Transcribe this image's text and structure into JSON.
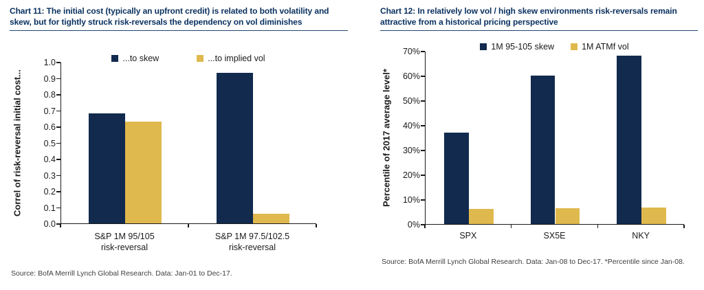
{
  "colors": {
    "navy": "#112A4E",
    "gold": "#E0B94E",
    "title": "#09305F",
    "rule": "#1F4571",
    "axis": "#1a1a1a",
    "text": "#1a1a1a",
    "source": "#3d3d3d",
    "background": "#ffffff"
  },
  "chart_data": [
    {
      "type": "bar",
      "title": "Chart 11: The initial cost (typically an upfront credit) is related to both volatility and skew, but for tightly struck risk-reversals the dependency on vol diminishes",
      "categories": [
        [
          "S&P 1M 95/105",
          "risk-reversal"
        ],
        [
          "S&P 1M 97.5/102.5",
          "risk-reversal"
        ]
      ],
      "series": [
        {
          "name": "...to skew",
          "color": "#112A4E",
          "values": [
            0.68,
            0.93
          ]
        },
        {
          "name": "...to implied vol",
          "color": "#E0B94E",
          "values": [
            0.63,
            0.06
          ]
        }
      ],
      "ylabel": "Correl of risk-reversal initial cost...",
      "xlabel": "",
      "ylim": [
        0,
        1.0
      ],
      "ytick_step": 0.1,
      "ytick_format": "decimal1",
      "grid": false,
      "legend_position": "top-inside",
      "source": "Source: BofA Merrill Lynch Global Research. Data:  Jan-01 to Dec-17."
    },
    {
      "type": "bar",
      "title": "Chart 12: In relatively low vol / high skew environments risk-reversals remain attractive from a historical pricing perspective",
      "categories": [
        [
          "SPX"
        ],
        [
          "SX5E"
        ],
        [
          "NKY"
        ]
      ],
      "series": [
        {
          "name": "1M 95-105 skew",
          "color": "#112A4E",
          "values": [
            37,
            60,
            68
          ]
        },
        {
          "name": "1M ATMf vol",
          "color": "#E0B94E",
          "values": [
            6,
            6.5,
            6.7
          ]
        }
      ],
      "ylabel": "Percentile of 2017 average level*",
      "xlabel": "",
      "ylim": [
        0,
        70
      ],
      "ytick_step": 10,
      "ytick_format": "percent",
      "grid": false,
      "legend_position": "top-inside",
      "source": "Source: BofA Merrill Lynch Global Research. Data:  Jan-08 to Dec-17. *Percentile since Jan-08."
    }
  ]
}
